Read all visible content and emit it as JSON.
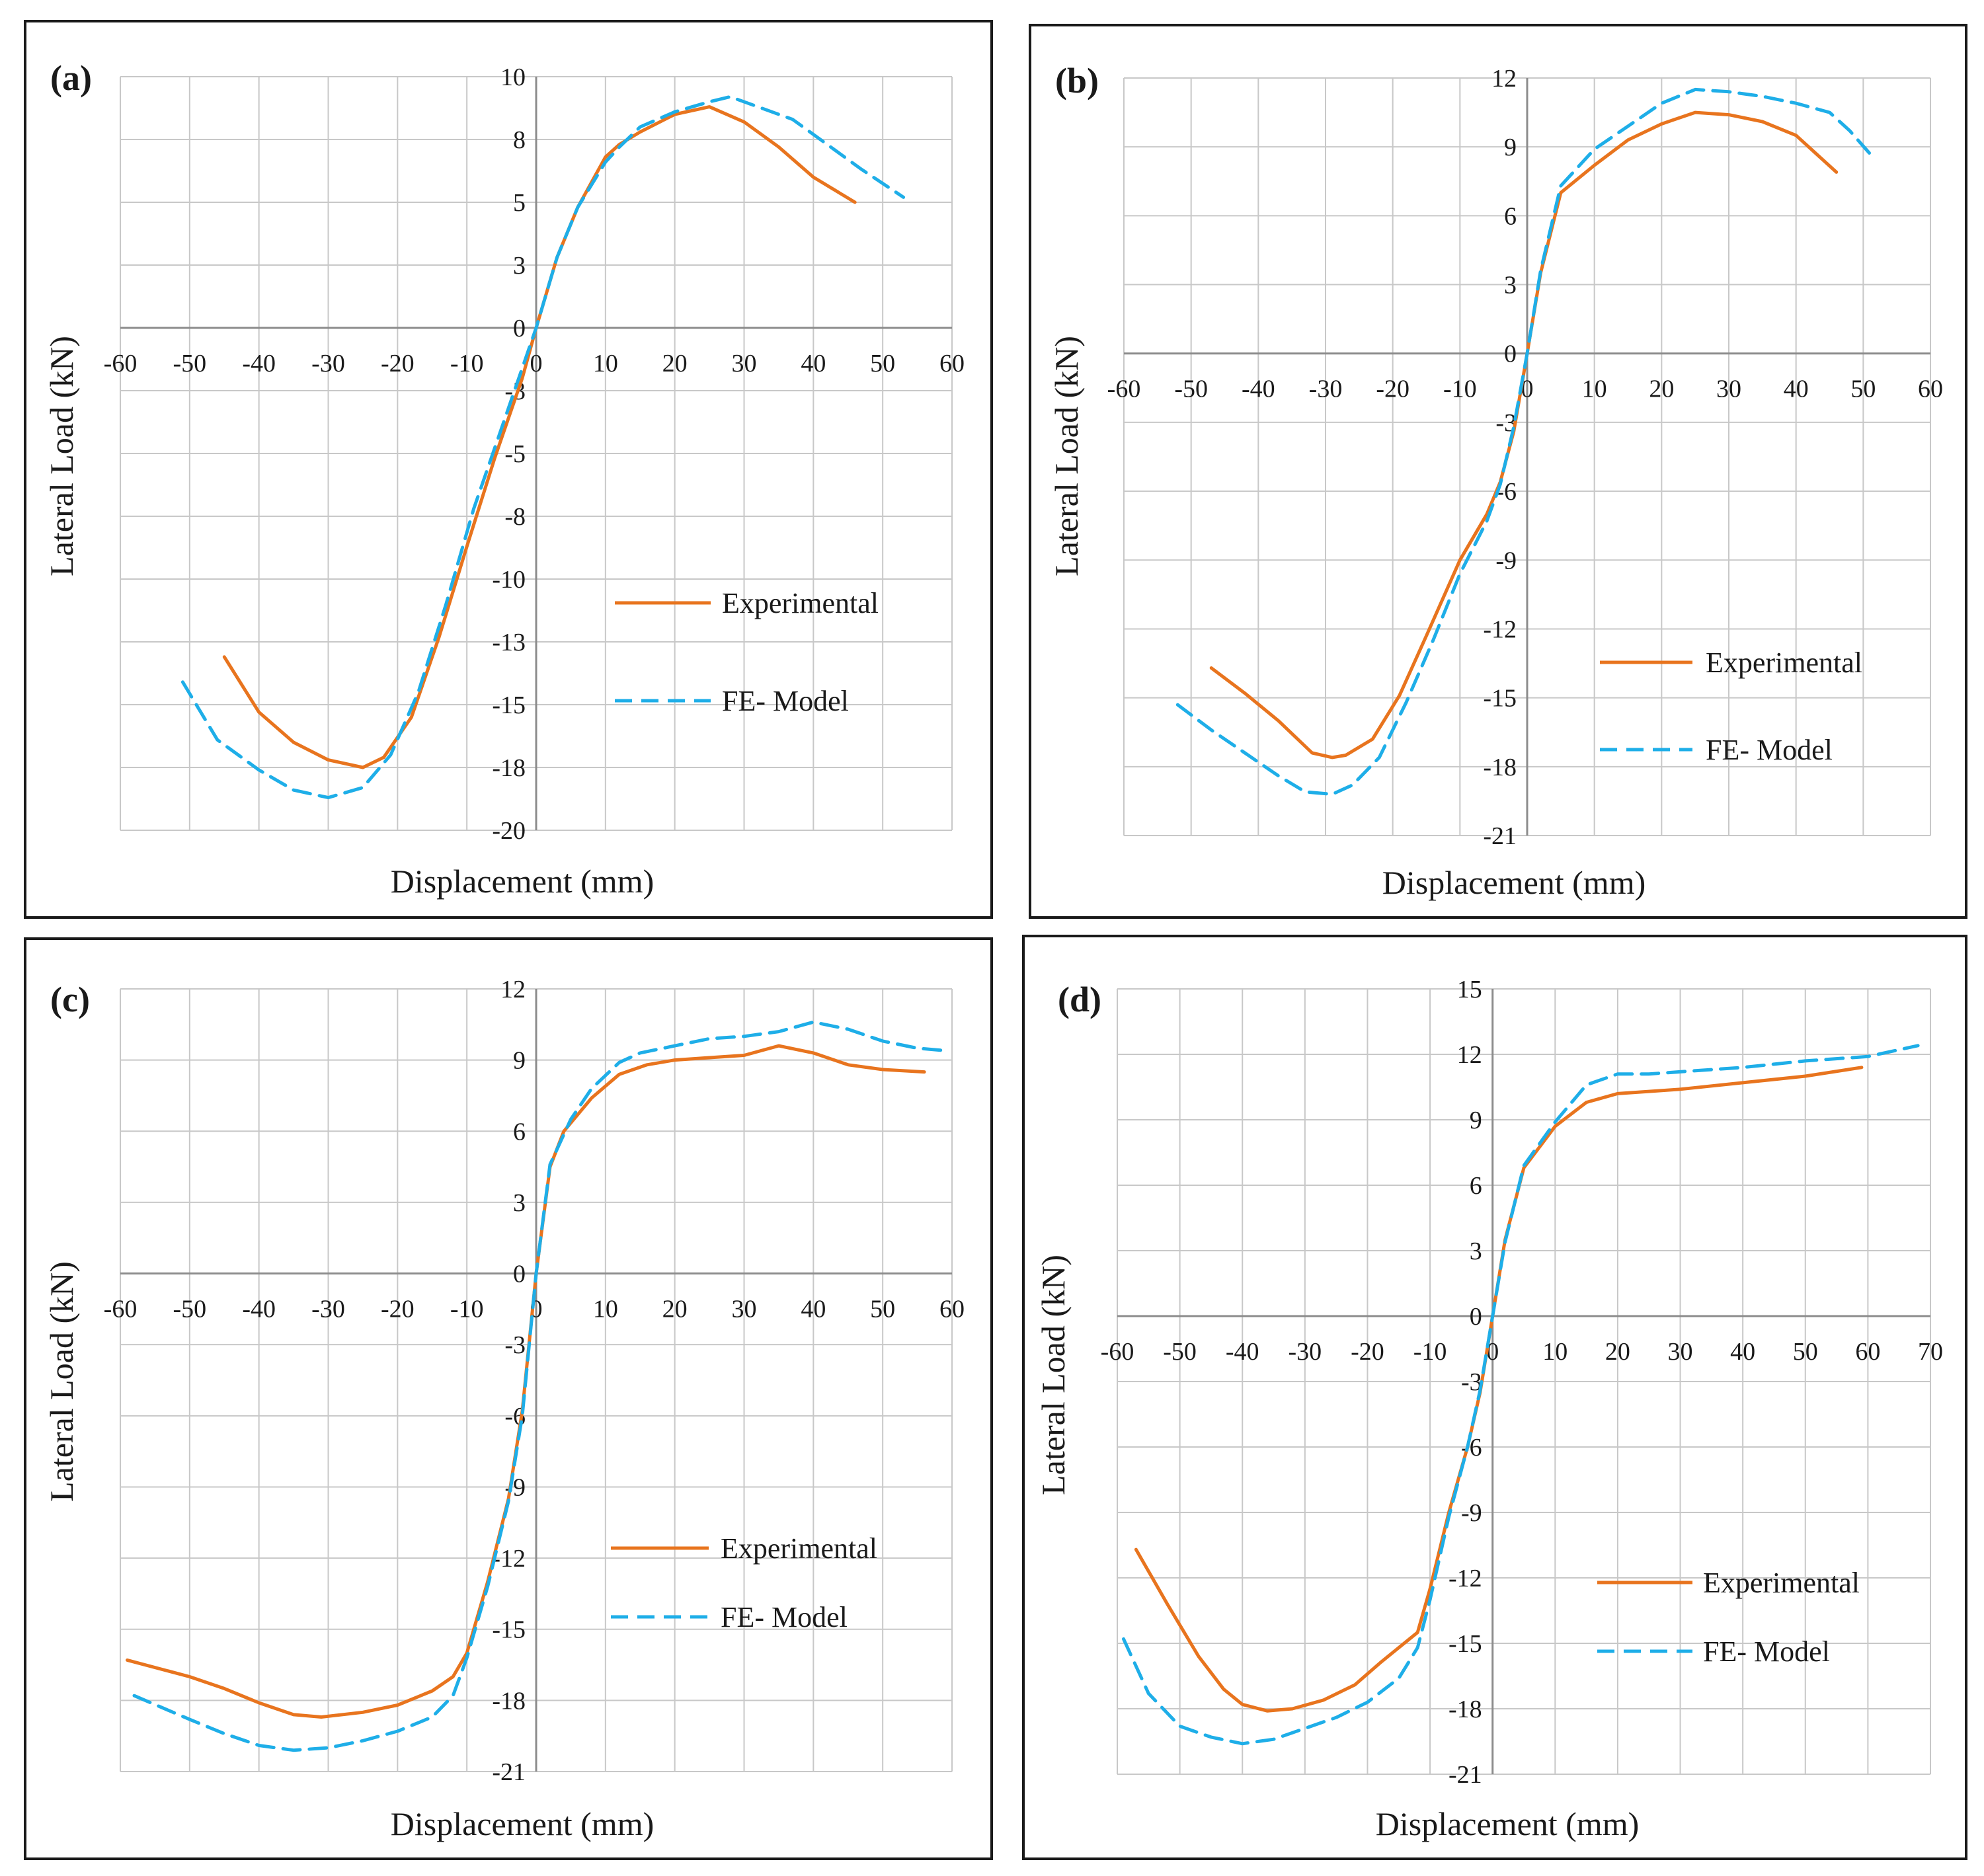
{
  "figure": {
    "background": "#ffffff"
  },
  "style": {
    "experimental_color": "#e8741e",
    "fe_model_color": "#1eaee8",
    "frame_color": "#1a1a1a",
    "grid_color": "#c8c8c8",
    "axis_color": "#8c8c8c"
  },
  "chart_data": [
    {
      "panel_label": "(a)",
      "type": "line",
      "xlabel": "Displacement (mm)",
      "ylabel": "Lateral Load (kN)",
      "xlim": [
        -60,
        60
      ],
      "ylim": [
        -20,
        10
      ],
      "x_ticks": [
        -60,
        -50,
        -40,
        -30,
        -20,
        -10,
        0,
        10,
        20,
        30,
        40,
        50,
        60
      ],
      "x_tick_labels": [
        "-60",
        "-50",
        "-40",
        "-30",
        "-20",
        "-10",
        "0",
        "10",
        "20",
        "30",
        "40",
        "50",
        "60"
      ],
      "y_ticks": [
        10,
        7.5,
        5,
        2.5,
        0,
        -2.5,
        -5,
        -7.5,
        -10,
        -12.5,
        -15,
        -17.5,
        -20
      ],
      "y_tick_labels": [
        "10",
        "8",
        "5",
        "3",
        "0",
        "-3",
        "-5",
        "-8",
        "-10",
        "-13",
        "-15",
        "-18",
        "-20"
      ],
      "legend_position": "right",
      "series": [
        {
          "name": "Experimental",
          "style": "solid",
          "x": [
            -45,
            -40,
            -35,
            -30,
            -25,
            -22,
            -18,
            -14,
            -10,
            -6,
            -2,
            0,
            3,
            6,
            10,
            12,
            15,
            20,
            25,
            30,
            35,
            40,
            46
          ],
          "y": [
            -13.1,
            -15.3,
            -16.5,
            -17.2,
            -17.5,
            -17.1,
            -15.5,
            -12.3,
            -8.7,
            -5.2,
            -2,
            0,
            2.8,
            4.8,
            6.8,
            7.3,
            7.8,
            8.5,
            8.8,
            8.2,
            7.2,
            6,
            5
          ]
        },
        {
          "name": "FE- Model",
          "style": "dashed",
          "x": [
            -51,
            -46,
            -40,
            -35,
            -30,
            -25,
            -21,
            -17,
            -13,
            -9,
            -5,
            -2,
            0,
            3,
            6,
            10,
            12,
            15,
            20,
            25,
            28,
            32,
            37,
            42,
            47,
            53
          ],
          "y": [
            -14.1,
            -16.4,
            -17.6,
            -18.4,
            -18.7,
            -18.3,
            -17,
            -14.5,
            -11,
            -7.2,
            -4,
            -1.6,
            0,
            2.8,
            4.8,
            6.6,
            7.2,
            8,
            8.6,
            9,
            9.2,
            8.8,
            8.3,
            7.3,
            6.3,
            5.2
          ]
        }
      ]
    },
    {
      "panel_label": "(b)",
      "type": "line",
      "xlabel": "Displacement (mm)",
      "ylabel": "Lateral Load (kN)",
      "xlim": [
        -60,
        60
      ],
      "ylim": [
        -21,
        12
      ],
      "x_ticks": [
        -60,
        -50,
        -40,
        -30,
        -20,
        -10,
        0,
        10,
        20,
        30,
        40,
        50,
        60
      ],
      "x_tick_labels": [
        "-60",
        "-50",
        "-40",
        "-30",
        "-20",
        "-10",
        "0",
        "10",
        "20",
        "30",
        "40",
        "50",
        "60"
      ],
      "y_ticks": [
        12,
        9,
        6,
        3,
        0,
        -3,
        -6,
        -9,
        -12,
        -15,
        -18,
        -21
      ],
      "y_tick_labels": [
        "12",
        "9",
        "6",
        "3",
        "0",
        "-3",
        "-6",
        "-9",
        "-12",
        "-15",
        "-18",
        "-21"
      ],
      "legend_position": "right",
      "series": [
        {
          "name": "Experimental",
          "style": "solid",
          "x": [
            -47,
            -42,
            -37,
            -32,
            -29,
            -27,
            -23,
            -19,
            -15,
            -10,
            -6,
            -4,
            -2,
            0,
            2,
            5,
            10,
            15,
            20,
            25,
            30,
            35,
            40,
            43,
            46
          ],
          "y": [
            -13.7,
            -14.8,
            -16.0,
            -17.4,
            -17.6,
            -17.5,
            -16.8,
            -14.9,
            -12.3,
            -9.0,
            -7.0,
            -5.6,
            -3.4,
            0,
            3.5,
            7.0,
            8.2,
            9.3,
            10.0,
            10.5,
            10.4,
            10.1,
            9.5,
            8.7,
            7.9
          ]
        },
        {
          "name": "FE- Model",
          "style": "dashed",
          "x": [
            -52,
            -47,
            -42,
            -37,
            -33,
            -29,
            -26,
            -22,
            -18,
            -14,
            -10,
            -6,
            -4,
            -2,
            0,
            2,
            5,
            10,
            15,
            20,
            25,
            30,
            35,
            40,
            45,
            48,
            51
          ],
          "y": [
            -15.3,
            -16.4,
            -17.4,
            -18.4,
            -19.1,
            -19.2,
            -18.8,
            -17.6,
            -15.2,
            -12.5,
            -9.6,
            -7.3,
            -5.7,
            -3.2,
            0,
            3.6,
            7.3,
            8.9,
            9.9,
            10.9,
            11.5,
            11.4,
            11.2,
            10.9,
            10.5,
            9.7,
            8.7
          ]
        }
      ]
    },
    {
      "panel_label": "(c)",
      "type": "line",
      "xlabel": "Displacement (mm)",
      "ylabel": "Lateral Load (kN)",
      "xlim": [
        -60,
        60
      ],
      "ylim": [
        -21,
        12
      ],
      "x_ticks": [
        -60,
        -50,
        -40,
        -30,
        -20,
        -10,
        0,
        10,
        20,
        30,
        40,
        50,
        60
      ],
      "x_tick_labels": [
        "-60",
        "-50",
        "-40",
        "-30",
        "-20",
        "-10",
        "0",
        "10",
        "20",
        "30",
        "40",
        "50",
        "60"
      ],
      "y_ticks": [
        12,
        9,
        6,
        3,
        0,
        -3,
        -6,
        -9,
        -12,
        -15,
        -18,
        -21
      ],
      "y_tick_labels": [
        "12",
        "9",
        "6",
        "3",
        "0",
        "-3",
        "-6",
        "-9",
        "-12",
        "-15",
        "-18",
        "-21"
      ],
      "legend_position": "right",
      "series": [
        {
          "name": "Experimental",
          "style": "solid",
          "x": [
            -59,
            -50,
            -45,
            -40,
            -35,
            -31,
            -25,
            -20,
            -15,
            -12,
            -10,
            -7,
            -4,
            -2,
            0,
            2,
            4,
            8,
            12,
            16,
            20,
            25,
            30,
            35,
            40,
            45,
            50,
            56
          ],
          "y": [
            -16.3,
            -17.0,
            -17.5,
            -18.1,
            -18.6,
            -18.7,
            -18.5,
            -18.2,
            -17.6,
            -17.0,
            -16.0,
            -13.0,
            -9.5,
            -5.8,
            0,
            4.5,
            6.0,
            7.4,
            8.4,
            8.8,
            9.0,
            9.1,
            9.2,
            9.6,
            9.3,
            8.8,
            8.6,
            8.5
          ]
        },
        {
          "name": "FE- Model",
          "style": "dashed",
          "x": [
            -58,
            -50,
            -45,
            -40,
            -35,
            -30,
            -25,
            -20,
            -15,
            -12,
            -10,
            -7,
            -4,
            -2,
            0,
            2,
            5,
            8,
            12,
            15,
            20,
            25,
            30,
            35,
            40,
            45,
            50,
            55,
            59
          ],
          "y": [
            -17.8,
            -18.8,
            -19.4,
            -19.9,
            -20.1,
            -20.0,
            -19.7,
            -19.3,
            -18.7,
            -17.8,
            -16.2,
            -13.2,
            -9.6,
            -6.0,
            0,
            4.6,
            6.5,
            7.8,
            8.9,
            9.3,
            9.6,
            9.9,
            10.0,
            10.2,
            10.6,
            10.3,
            9.8,
            9.5,
            9.4
          ]
        }
      ]
    },
    {
      "panel_label": "(d)",
      "type": "line",
      "xlabel": "Displacement (mm)",
      "ylabel": "Lateral Load (kN)",
      "xlim": [
        -60,
        70
      ],
      "ylim": [
        -21,
        15
      ],
      "x_ticks": [
        -60,
        -50,
        -40,
        -30,
        -20,
        -10,
        0,
        10,
        20,
        30,
        40,
        50,
        60,
        70
      ],
      "x_tick_labels": [
        "-60",
        "-50",
        "-40",
        "-30",
        "-20",
        "-10",
        "0",
        "10",
        "20",
        "30",
        "40",
        "50",
        "60",
        "70"
      ],
      "y_ticks": [
        15,
        12,
        9,
        6,
        3,
        0,
        -3,
        -6,
        -9,
        -12,
        -15,
        -18,
        -21
      ],
      "y_tick_labels": [
        "15",
        "12",
        "9",
        "6",
        "3",
        "0",
        "-3",
        "-6",
        "-9",
        "-12",
        "-15",
        "-18",
        "-21"
      ],
      "legend_position": "right",
      "series": [
        {
          "name": "Experimental",
          "style": "solid",
          "x": [
            -57,
            -52,
            -47,
            -43,
            -40,
            -36,
            -32,
            -27,
            -22,
            -18,
            -15,
            -12,
            -10,
            -7,
            -4,
            -2,
            0,
            2,
            5,
            10,
            15,
            20,
            25,
            30,
            40,
            50,
            59
          ],
          "y": [
            -10.7,
            -13.2,
            -15.6,
            -17.1,
            -17.8,
            -18.1,
            -18.0,
            -17.6,
            -16.9,
            -15.9,
            -15.2,
            -14.5,
            -12.5,
            -9.0,
            -6.0,
            -3.5,
            0,
            3.5,
            6.8,
            8.7,
            9.8,
            10.2,
            10.3,
            10.4,
            10.7,
            11.0,
            11.4
          ]
        },
        {
          "name": "FE- Model",
          "style": "dashed",
          "x": [
            -59,
            -55,
            -50,
            -45,
            -40,
            -35,
            -30,
            -25,
            -20,
            -15,
            -12,
            -10,
            -7,
            -4,
            -2,
            0,
            2,
            5,
            10,
            15,
            20,
            25,
            30,
            40,
            50,
            60,
            68
          ],
          "y": [
            -14.8,
            -17.3,
            -18.8,
            -19.3,
            -19.6,
            -19.4,
            -18.9,
            -18.4,
            -17.7,
            -16.6,
            -15.2,
            -13.0,
            -9.2,
            -6.0,
            -3.4,
            0,
            3.4,
            6.9,
            8.9,
            10.6,
            11.1,
            11.1,
            11.2,
            11.4,
            11.7,
            11.9,
            12.4
          ]
        }
      ]
    }
  ]
}
